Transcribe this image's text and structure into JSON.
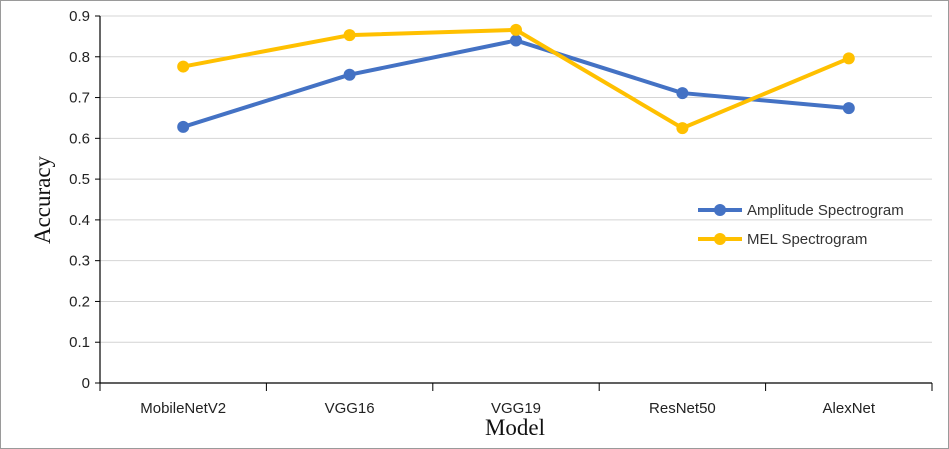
{
  "chart_data": {
    "type": "line",
    "title": "",
    "xlabel": "Model",
    "ylabel": "Accuracy",
    "categories": [
      "MobileNetV2",
      "VGG16",
      "VGG19",
      "ResNet50",
      "AlexNet"
    ],
    "ylim": [
      0,
      0.9
    ],
    "yticks": [
      "0",
      "0.1",
      "0.2",
      "0.3",
      "0.4",
      "0.5",
      "0.6",
      "0.7",
      "0.8",
      "0.9"
    ],
    "grid": true,
    "legend_position": "right",
    "series": [
      {
        "name": "Amplitude Spectrogram",
        "color": "#4472C4",
        "values": [
          0.628,
          0.756,
          0.84,
          0.711,
          0.674
        ]
      },
      {
        "name": "MEL Spectrogram",
        "color": "#FFC000",
        "values": [
          0.776,
          0.853,
          0.866,
          0.625,
          0.796
        ]
      }
    ]
  }
}
